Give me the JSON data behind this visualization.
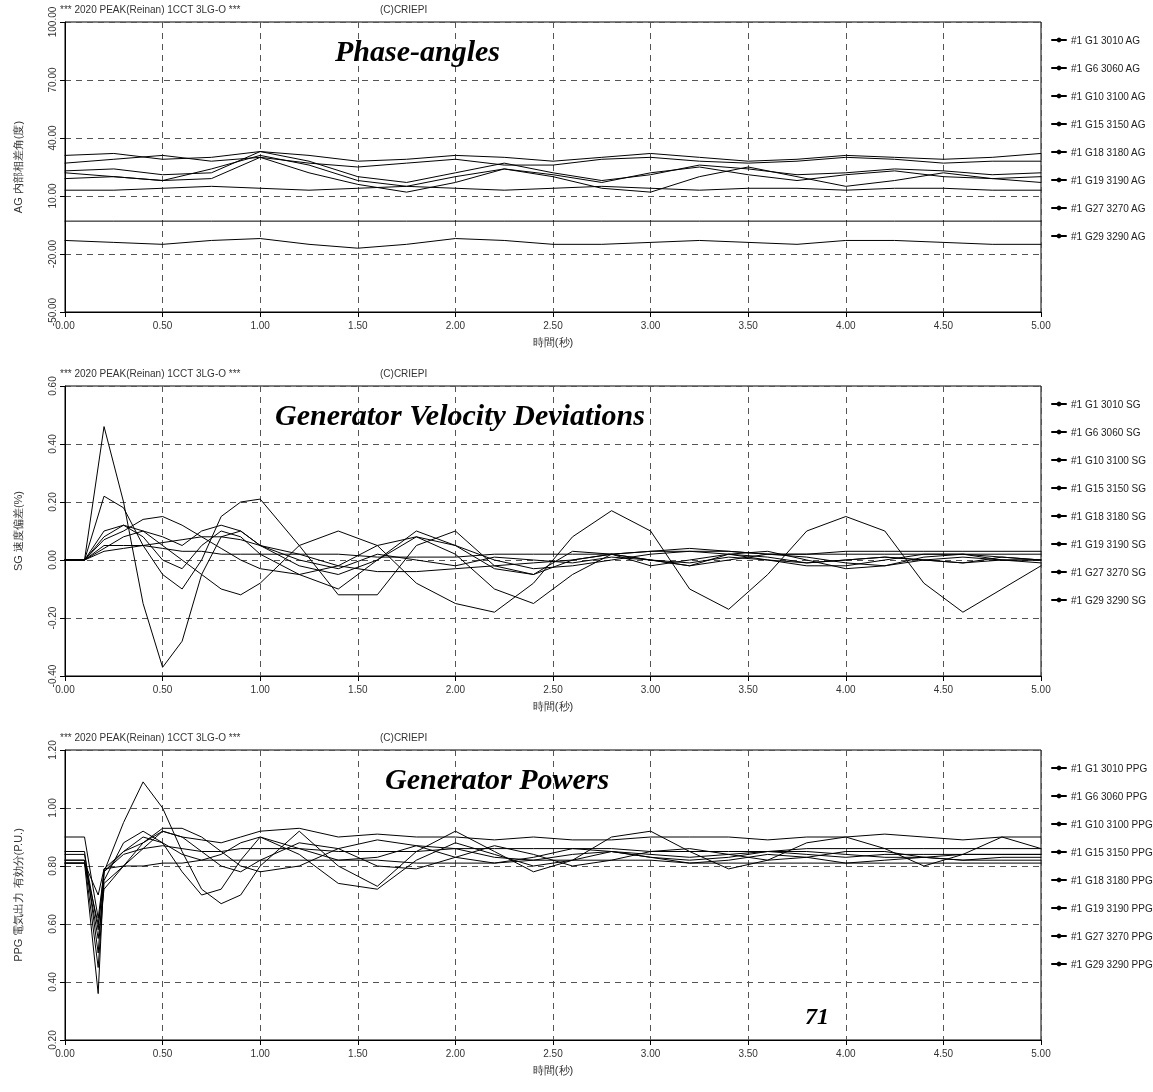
{
  "chart_data": [
    {
      "type": "line",
      "title": "Phase-angles",
      "xlabel": "時間(秒)",
      "ylabel": "AG 内部相差角(度)",
      "annotations": [
        "*** 2020 PEAK(Reinan) 1CCT 3LG-O ***",
        "(C)CRIEPI"
      ],
      "x": [
        0,
        0.25,
        0.5,
        0.75,
        1,
        1.25,
        1.5,
        1.75,
        2,
        2.25,
        2.5,
        2.75,
        3,
        3.25,
        3.5,
        3.75,
        4,
        4.25,
        4.5,
        4.75,
        5
      ],
      "xlim": [
        0,
        5
      ],
      "xticks": [
        {
          "value": 0,
          "label": "0.00"
        },
        {
          "value": 0.5,
          "label": "0.50"
        },
        {
          "value": 1,
          "label": "1.00"
        },
        {
          "value": 1.5,
          "label": "1.50"
        },
        {
          "value": 2,
          "label": "2.00"
        },
        {
          "value": 2.5,
          "label": "2.50"
        },
        {
          "value": 3,
          "label": "3.00"
        },
        {
          "value": 3.5,
          "label": "3.50"
        },
        {
          "value": 4,
          "label": "4.00"
        },
        {
          "value": 4.5,
          "label": "4.50"
        },
        {
          "value": 5,
          "label": "5.00"
        }
      ],
      "ylim": [
        -50,
        100
      ],
      "yticks": [
        {
          "value": -50,
          "label": "-50.00"
        },
        {
          "value": -20,
          "label": "-20.00"
        },
        {
          "value": 10,
          "label": "10.00"
        },
        {
          "value": 40,
          "label": "40.00"
        },
        {
          "value": 70,
          "label": "70.00"
        },
        {
          "value": 100,
          "label": "100.00"
        }
      ],
      "grid": true,
      "legend": "right",
      "marker": "none",
      "line_style": "solid",
      "series": [
        {
          "name": "#1 G1 3010 AG",
          "color": "#000000",
          "values": [
            13,
            13,
            14,
            15,
            14,
            13,
            14,
            15,
            14,
            13,
            14,
            15,
            14,
            13,
            14,
            14,
            13,
            14,
            14,
            13,
            13
          ]
        },
        {
          "name": "#1 G6 3060 AG",
          "color": "#000000",
          "values": [
            31,
            32,
            29,
            30,
            33,
            31,
            28,
            29,
            31,
            30,
            28,
            30,
            32,
            30,
            28,
            29,
            31,
            30,
            29,
            30,
            32
          ]
        },
        {
          "name": "#1 G10 3100 AG",
          "color": "#000000",
          "values": [
            19,
            20,
            18,
            24,
            31,
            26,
            18,
            15,
            20,
            24,
            21,
            17,
            22,
            25,
            21,
            18,
            21,
            23,
            20,
            19,
            20
          ]
        },
        {
          "name": "#1 G15 3150 AG",
          "color": "#000000",
          "values": [
            -3,
            -3,
            -3,
            -3,
            -3,
            -3,
            -3,
            -3,
            -3,
            -3,
            -3,
            -3,
            -3,
            -3,
            -3,
            -3,
            -3,
            -3,
            -3,
            -3,
            -3
          ]
        },
        {
          "name": "#1 G18 3180 AG",
          "color": "#000000",
          "values": [
            -13,
            -14,
            -15,
            -13,
            -12,
            -15,
            -17,
            -15,
            -12,
            -13,
            -15,
            -15,
            -14,
            -13,
            -14,
            -15,
            -13,
            -13,
            -14,
            -15,
            -15
          ]
        },
        {
          "name": "#1 G19 3190 AG",
          "color": "#000000",
          "values": [
            22,
            20,
            18,
            19,
            30,
            22,
            16,
            12,
            17,
            24,
            20,
            14,
            12,
            20,
            25,
            20,
            15,
            18,
            22,
            19,
            17
          ]
        },
        {
          "name": "#1 G27 3270 AG",
          "color": "#000000",
          "values": [
            27,
            29,
            31,
            28,
            30,
            27,
            25,
            27,
            29,
            26,
            26,
            29,
            30,
            28,
            27,
            28,
            30,
            29,
            27,
            28,
            28
          ]
        },
        {
          "name": "#1 G29 3290 AG",
          "color": "#000000",
          "values": [
            23,
            24,
            21,
            22,
            33,
            28,
            20,
            17,
            22,
            27,
            22,
            18,
            21,
            26,
            24,
            21,
            22,
            24,
            23,
            21,
            22
          ]
        }
      ]
    },
    {
      "type": "line",
      "title": "Generator Velocity Deviations",
      "xlabel": "時間(秒)",
      "ylabel": "SG 速度偏差(%)",
      "annotations": [
        "*** 2020 PEAK(Reinan) 1CCT 3LG-O ***",
        "(C)CRIEPI"
      ],
      "x": [
        0,
        0.1,
        0.2,
        0.3,
        0.4,
        0.5,
        0.6,
        0.7,
        0.8,
        0.9,
        1.0,
        1.2,
        1.4,
        1.6,
        1.8,
        2.0,
        2.2,
        2.4,
        2.6,
        2.8,
        3.0,
        3.2,
        3.4,
        3.6,
        3.8,
        4.0,
        4.2,
        4.4,
        4.6,
        4.8,
        5.0
      ],
      "xlim": [
        0,
        5
      ],
      "xticks": [
        {
          "value": 0,
          "label": "0.00"
        },
        {
          "value": 0.5,
          "label": "0.50"
        },
        {
          "value": 1,
          "label": "1.00"
        },
        {
          "value": 1.5,
          "label": "1.50"
        },
        {
          "value": 2,
          "label": "2.00"
        },
        {
          "value": 2.5,
          "label": "2.50"
        },
        {
          "value": 3,
          "label": "3.00"
        },
        {
          "value": 3.5,
          "label": "3.50"
        },
        {
          "value": 4,
          "label": "4.00"
        },
        {
          "value": 4.5,
          "label": "4.50"
        },
        {
          "value": 5,
          "label": "5.00"
        }
      ],
      "ylim": [
        -0.4,
        0.6
      ],
      "yticks": [
        {
          "value": -0.4,
          "label": "-0.40"
        },
        {
          "value": -0.2,
          "label": "-0.20"
        },
        {
          "value": 0,
          "label": "0.00"
        },
        {
          "value": 0.2,
          "label": "0.20"
        },
        {
          "value": 0.4,
          "label": "0.40"
        },
        {
          "value": 0.6,
          "label": "0.60"
        }
      ],
      "grid": true,
      "legend": "right",
      "marker": "none",
      "line_style": "solid",
      "series": [
        {
          "name": "#1 G1 3010 SG",
          "color": "#000000",
          "values": [
            0,
            0,
            0.05,
            0.05,
            0.05,
            0.04,
            0.03,
            0.03,
            0.02,
            0.02,
            0.02,
            0.02,
            0.02,
            0.01,
            0.01,
            0.01,
            0.02,
            0.02,
            0.02,
            0.02,
            0.03,
            0.03,
            0.03,
            0.02,
            0.02,
            0.02,
            0.02,
            0.02,
            0.02,
            0.02,
            0.02
          ]
        },
        {
          "name": "#1 G6 3060 SG",
          "color": "#000000",
          "values": [
            0,
            0,
            0.1,
            0.12,
            0.08,
            0,
            -0.03,
            0.05,
            0.1,
            0.08,
            0.02,
            -0.05,
            -0.1,
            0,
            0.08,
            0.02,
            -0.1,
            -0.15,
            -0.05,
            0.02,
            0,
            -0.02,
            0.02,
            0.03,
            0,
            -0.03,
            -0.02,
            0.01,
            0.02,
            0,
            -0.01
          ]
        },
        {
          "name": "#1 G10 3100 SG",
          "color": "#000000",
          "values": [
            0,
            0,
            0.07,
            0.1,
            0.14,
            0.15,
            0.12,
            0.08,
            0.04,
            0,
            -0.03,
            -0.05,
            -0.02,
            0.05,
            0.08,
            0.05,
            0,
            -0.03,
            -0.02,
            0,
            0.02,
            0.03,
            0.02,
            0,
            -0.02,
            -0.02,
            0,
            0.02,
            0.02,
            0.01,
            0
          ]
        },
        {
          "name": "#1 G15 3150 SG",
          "color": "#000000",
          "values": [
            0,
            0,
            0.22,
            0.18,
            0.05,
            -0.05,
            -0.1,
            0,
            0.15,
            0.2,
            0.21,
            0.05,
            -0.12,
            -0.12,
            0.05,
            0.1,
            -0.02,
            -0.05,
            0.03,
            0.02,
            -0.02,
            0,
            0.02,
            0.01,
            -0.01,
            0,
            0.01,
            0,
            -0.01,
            0.01,
            0
          ]
        },
        {
          "name": "#1 G18 3180 SG",
          "color": "#000000",
          "values": [
            0,
            0,
            0.46,
            0.2,
            -0.15,
            -0.37,
            -0.28,
            -0.05,
            0.08,
            0.1,
            0.05,
            0,
            -0.03,
            0.02,
            0,
            -0.02,
            0.01,
            0,
            -0.01,
            0.01,
            0,
            -0.01,
            0.01,
            0,
            -0.01,
            0,
            0.01,
            0,
            -0.01,
            0,
            0
          ]
        },
        {
          "name": "#1 G19 3190 SG",
          "color": "#000000",
          "values": [
            0,
            0,
            0.04,
            0.08,
            0.1,
            0.08,
            0.05,
            0.1,
            0.12,
            0.1,
            0.05,
            -0.02,
            -0.05,
            0,
            0.1,
            0.05,
            -0.03,
            -0.05,
            0,
            0.02,
            0,
            -0.02,
            0,
            0.02,
            0.01,
            -0.01,
            -0.02,
            0,
            0.01,
            0,
            0
          ]
        },
        {
          "name": "#1 G27 3270 SG",
          "color": "#000000",
          "values": [
            0,
            0,
            0.03,
            0.04,
            0.05,
            0.06,
            0.07,
            0.08,
            0.08,
            0.07,
            0.05,
            0.02,
            -0.02,
            -0.04,
            -0.04,
            -0.03,
            -0.02,
            -0.01,
            0,
            0.02,
            0.03,
            0.04,
            0.03,
            0.02,
            0.02,
            0.03,
            0.03,
            0.03,
            0.03,
            0.03,
            0.03
          ]
        },
        {
          "name": "#1 G29 3290 SG",
          "color": "#000000",
          "values": [
            0,
            0,
            0.08,
            0.12,
            0.1,
            0.05,
            0,
            -0.05,
            -0.1,
            -0.12,
            -0.08,
            0.05,
            0.1,
            0.05,
            -0.08,
            -0.15,
            -0.18,
            -0.08,
            0.08,
            0.17,
            0.1,
            -0.1,
            -0.17,
            -0.05,
            0.1,
            0.15,
            0.1,
            -0.08,
            -0.18,
            -0.1,
            -0.02
          ]
        }
      ]
    },
    {
      "type": "line",
      "title": "Generator Powers",
      "xlabel": "時間(秒)",
      "ylabel": "PPG 電気出力 有効分(P.U.)",
      "annotations": [
        "*** 2020 PEAK(Reinan) 1CCT 3LG-O ***",
        "(C)CRIEPI",
        "71"
      ],
      "x": [
        0,
        0.1,
        0.17,
        0.2,
        0.3,
        0.4,
        0.5,
        0.6,
        0.7,
        0.8,
        0.9,
        1.0,
        1.2,
        1.4,
        1.6,
        1.8,
        2.0,
        2.2,
        2.4,
        2.6,
        2.8,
        3.0,
        3.2,
        3.4,
        3.6,
        3.8,
        4.0,
        4.2,
        4.4,
        4.6,
        4.8,
        5.0
      ],
      "xlim": [
        0,
        5
      ],
      "xticks": [
        {
          "value": 0,
          "label": "0.00"
        },
        {
          "value": 0.5,
          "label": "0.50"
        },
        {
          "value": 1,
          "label": "1.00"
        },
        {
          "value": 1.5,
          "label": "1.50"
        },
        {
          "value": 2,
          "label": "2.00"
        },
        {
          "value": 2.5,
          "label": "2.50"
        },
        {
          "value": 3,
          "label": "3.00"
        },
        {
          "value": 3.5,
          "label": "3.50"
        },
        {
          "value": 4,
          "label": "4.00"
        },
        {
          "value": 4.5,
          "label": "4.50"
        },
        {
          "value": 5,
          "label": "5.00"
        }
      ],
      "ylim": [
        0.2,
        1.2
      ],
      "yticks": [
        {
          "value": 0.2,
          "label": "0.20"
        },
        {
          "value": 0.4,
          "label": "0.40"
        },
        {
          "value": 0.6,
          "label": "0.60"
        },
        {
          "value": 0.8,
          "label": "0.80"
        },
        {
          "value": 1.0,
          "label": "1.00"
        },
        {
          "value": 1.2,
          "label": "1.20"
        }
      ],
      "grid": true,
      "legend": "right",
      "marker": "none",
      "line_style": "solid",
      "series": [
        {
          "name": "#1 G1 3010 PPG",
          "color": "#000000",
          "values": [
            0.85,
            0.85,
            0.5,
            0.78,
            0.84,
            0.86,
            0.87,
            0.86,
            0.85,
            0.85,
            0.86,
            0.86,
            0.86,
            0.85,
            0.85,
            0.85,
            0.86,
            0.86,
            0.86,
            0.86,
            0.86,
            0.85,
            0.85,
            0.85,
            0.85,
            0.86,
            0.86,
            0.86,
            0.86,
            0.86,
            0.86,
            0.86
          ]
        },
        {
          "name": "#1 G6 3060 PPG",
          "color": "#000000",
          "values": [
            0.82,
            0.82,
            0.45,
            0.74,
            0.8,
            0.86,
            0.92,
            0.9,
            0.85,
            0.8,
            0.78,
            0.82,
            0.88,
            0.86,
            0.8,
            0.79,
            0.83,
            0.87,
            0.84,
            0.8,
            0.82,
            0.85,
            0.86,
            0.84,
            0.82,
            0.83,
            0.85,
            0.85,
            0.83,
            0.82,
            0.83,
            0.83
          ]
        },
        {
          "name": "#1 G10 3100 PPG",
          "color": "#000000",
          "values": [
            0.82,
            0.82,
            0.55,
            0.72,
            0.8,
            0.88,
            0.93,
            0.93,
            0.9,
            0.85,
            0.8,
            0.78,
            0.8,
            0.86,
            0.89,
            0.87,
            0.83,
            0.81,
            0.83,
            0.86,
            0.85,
            0.83,
            0.82,
            0.83,
            0.85,
            0.85,
            0.84,
            0.83,
            0.83,
            0.84,
            0.84,
            0.84
          ]
        },
        {
          "name": "#1 G15 3150 PPG",
          "color": "#000000",
          "values": [
            0.81,
            0.81,
            0.6,
            0.75,
            0.88,
            0.92,
            0.88,
            0.78,
            0.7,
            0.72,
            0.82,
            0.9,
            0.84,
            0.74,
            0.72,
            0.82,
            0.88,
            0.84,
            0.8,
            0.82,
            0.85,
            0.83,
            0.81,
            0.82,
            0.84,
            0.83,
            0.81,
            0.82,
            0.83,
            0.82,
            0.82,
            0.82
          ]
        },
        {
          "name": "#1 G18 3180 PPG",
          "color": "#000000",
          "values": [
            0.9,
            0.9,
            0.62,
            0.78,
            0.85,
            0.88,
            0.92,
            0.9,
            0.89,
            0.88,
            0.9,
            0.92,
            0.93,
            0.9,
            0.91,
            0.9,
            0.9,
            0.89,
            0.9,
            0.89,
            0.89,
            0.9,
            0.9,
            0.9,
            0.89,
            0.9,
            0.9,
            0.91,
            0.9,
            0.89,
            0.9,
            0.9
          ]
        },
        {
          "name": "#1 G19 3190 PPG",
          "color": "#000000",
          "values": [
            0.84,
            0.84,
            0.58,
            0.79,
            0.85,
            0.9,
            0.88,
            0.84,
            0.82,
            0.84,
            0.88,
            0.9,
            0.86,
            0.82,
            0.83,
            0.87,
            0.86,
            0.83,
            0.82,
            0.84,
            0.85,
            0.84,
            0.83,
            0.84,
            0.85,
            0.84,
            0.83,
            0.84,
            0.84,
            0.84,
            0.84,
            0.84
          ]
        },
        {
          "name": "#1 G27 3270 PPG",
          "color": "#000000",
          "values": [
            0.81,
            0.81,
            0.7,
            0.79,
            0.8,
            0.8,
            0.81,
            0.81,
            0.82,
            0.82,
            0.82,
            0.82,
            0.82,
            0.82,
            0.82,
            0.81,
            0.81,
            0.81,
            0.82,
            0.82,
            0.82,
            0.82,
            0.81,
            0.81,
            0.81,
            0.81,
            0.81,
            0.81,
            0.81,
            0.81,
            0.81,
            0.81
          ]
        },
        {
          "name": "#1 G29 3290 PPG",
          "color": "#000000",
          "values": [
            0.81,
            0.81,
            0.36,
            0.78,
            0.95,
            1.09,
            1.0,
            0.85,
            0.72,
            0.67,
            0.7,
            0.8,
            0.92,
            0.8,
            0.73,
            0.85,
            0.92,
            0.85,
            0.78,
            0.82,
            0.9,
            0.92,
            0.85,
            0.79,
            0.82,
            0.88,
            0.9,
            0.86,
            0.8,
            0.84,
            0.9,
            0.86
          ]
        }
      ]
    }
  ]
}
